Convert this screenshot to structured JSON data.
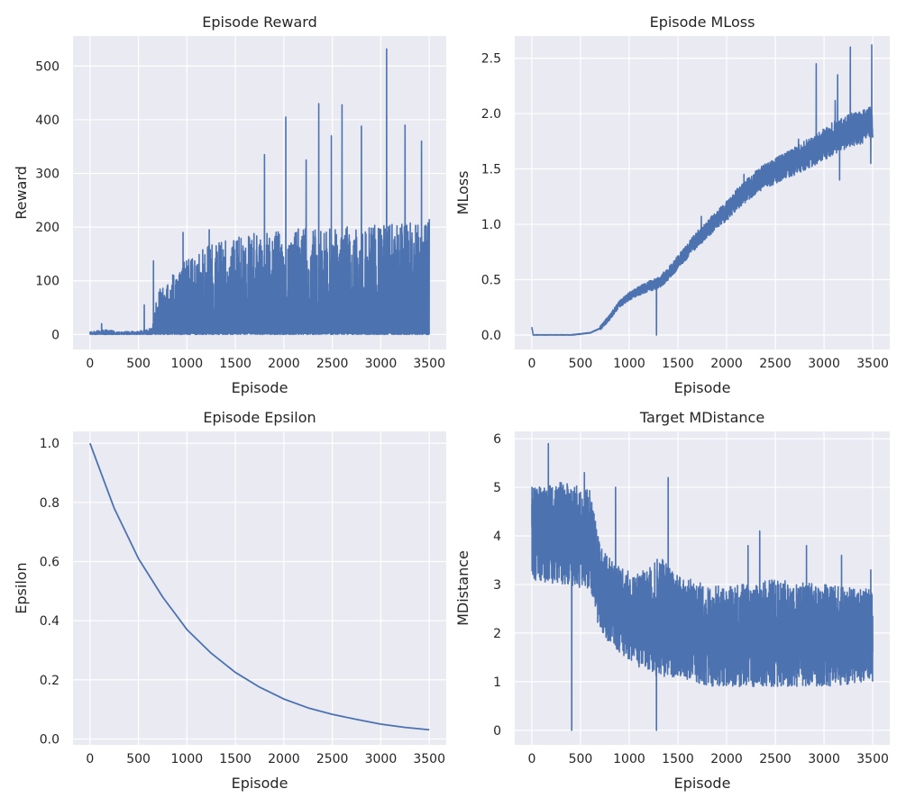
{
  "theme": {
    "plot_bg": "#eaeaf2",
    "grid": "#ffffff",
    "line": "#4c72b0",
    "text": "#262626"
  },
  "chart_data": [
    {
      "type": "line",
      "title": "Episode Reward",
      "xlabel": "Episode",
      "ylabel": "Reward",
      "xlim": [
        -175,
        3675
      ],
      "ylim": [
        -28,
        556
      ],
      "xticks": [
        0,
        500,
        1000,
        1500,
        2000,
        2500,
        3000,
        3500
      ],
      "yticks": [
        0,
        100,
        200,
        300,
        400,
        500
      ],
      "x_range": [
        0,
        3500
      ],
      "series": [
        {
          "name": "",
          "points_description": "noisy per-episode reward",
          "envelope_upper": [
            [
              0,
              8
            ],
            [
              150,
              15
            ],
            [
              300,
              10
            ],
            [
              500,
              10
            ],
            [
              640,
              20
            ],
            [
              700,
              80
            ],
            [
              800,
              100
            ],
            [
              1000,
              140
            ],
            [
              1200,
              165
            ],
            [
              1500,
              185
            ],
            [
              1800,
              190
            ],
            [
              2000,
              195
            ],
            [
              2500,
              200
            ],
            [
              3000,
              205
            ],
            [
              3500,
              210
            ]
          ],
          "peaks": [
            [
              120,
              20
            ],
            [
              560,
              55
            ],
            [
              655,
              137
            ],
            [
              960,
              190
            ],
            [
              1230,
              195
            ],
            [
              1800,
              335
            ],
            [
              2020,
              405
            ],
            [
              2230,
              325
            ],
            [
              2360,
              430
            ],
            [
              2490,
              370
            ],
            [
              2600,
              428
            ],
            [
              2800,
              388
            ],
            [
              3060,
              532
            ],
            [
              3250,
              390
            ],
            [
              3420,
              360
            ],
            [
              3500,
              215
            ]
          ],
          "floor": 0
        }
      ]
    },
    {
      "type": "line",
      "title": "Episode MLoss",
      "xlabel": "Episode",
      "ylabel": "MLoss",
      "xlim": [
        -175,
        3675
      ],
      "ylim": [
        -0.13,
        2.7
      ],
      "xticks": [
        0,
        500,
        1000,
        1500,
        2000,
        2500,
        3000,
        3500
      ],
      "yticks": [
        0.0,
        0.5,
        1.0,
        1.5,
        2.0,
        2.5
      ],
      "x_range": [
        0,
        3500
      ],
      "series": [
        {
          "name": "",
          "trend": [
            [
              0,
              0.07
            ],
            [
              15,
              0.0
            ],
            [
              400,
              0.0
            ],
            [
              600,
              0.02
            ],
            [
              700,
              0.06
            ],
            [
              800,
              0.16
            ],
            [
              900,
              0.28
            ],
            [
              1000,
              0.35
            ],
            [
              1100,
              0.4
            ],
            [
              1200,
              0.44
            ],
            [
              1300,
              0.47
            ],
            [
              1400,
              0.55
            ],
            [
              1500,
              0.66
            ],
            [
              1600,
              0.76
            ],
            [
              1700,
              0.87
            ],
            [
              1800,
              0.95
            ],
            [
              1900,
              1.05
            ],
            [
              2000,
              1.12
            ],
            [
              2100,
              1.22
            ],
            [
              2200,
              1.3
            ],
            [
              2300,
              1.38
            ],
            [
              2400,
              1.44
            ],
            [
              2500,
              1.48
            ],
            [
              2600,
              1.53
            ],
            [
              2700,
              1.57
            ],
            [
              2800,
              1.62
            ],
            [
              2900,
              1.67
            ],
            [
              3000,
              1.72
            ],
            [
              3100,
              1.78
            ],
            [
              3200,
              1.82
            ],
            [
              3300,
              1.86
            ],
            [
              3400,
              1.88
            ],
            [
              3500,
              1.92
            ]
          ],
          "spikes": [
            [
              1280,
              0.0
            ],
            [
              2920,
              2.45
            ],
            [
              3140,
              2.35
            ],
            [
              3270,
              2.6
            ],
            [
              3490,
              2.62
            ],
            [
              3160,
              1.4
            ],
            [
              3480,
              1.55
            ]
          ],
          "noise_amplitude": 0.15
        }
      ]
    },
    {
      "type": "line",
      "title": "Episode Epsilon",
      "xlabel": "Episode",
      "ylabel": "Epsilon",
      "xlim": [
        -175,
        3675
      ],
      "ylim": [
        -0.02,
        1.04
      ],
      "xticks": [
        0,
        500,
        1000,
        1500,
        2000,
        2500,
        3000,
        3500
      ],
      "yticks": [
        0.0,
        0.2,
        0.4,
        0.6,
        0.8,
        1.0
      ],
      "series": [
        {
          "name": "",
          "x": [
            0,
            250,
            500,
            750,
            1000,
            1250,
            1500,
            1750,
            2000,
            2250,
            2500,
            2750,
            3000,
            3250,
            3500
          ],
          "y": [
            1.0,
            0.78,
            0.61,
            0.48,
            0.37,
            0.29,
            0.225,
            0.175,
            0.135,
            0.105,
            0.083,
            0.066,
            0.05,
            0.039,
            0.031
          ]
        }
      ]
    },
    {
      "type": "line",
      "title": "Target MDistance",
      "xlabel": "Episode",
      "ylabel": "MDistance",
      "xlim": [
        -175,
        3675
      ],
      "ylim": [
        -0.3,
        6.15
      ],
      "xticks": [
        0,
        500,
        1000,
        1500,
        2000,
        2500,
        3000,
        3500
      ],
      "yticks": [
        0,
        1,
        2,
        3,
        4,
        5,
        6
      ],
      "x_range": [
        0,
        3500
      ],
      "series": [
        {
          "name": "",
          "band": [
            [
              0,
              3.1,
              5.0
            ],
            [
              300,
              3.0,
              5.1
            ],
            [
              600,
              2.9,
              5.0
            ],
            [
              700,
              2.0,
              3.8
            ],
            [
              900,
              1.6,
              3.4
            ],
            [
              1100,
              1.3,
              3.2
            ],
            [
              1300,
              1.1,
              3.6
            ],
            [
              1500,
              1.1,
              3.2
            ],
            [
              1800,
              0.9,
              3.0
            ],
            [
              2100,
              0.9,
              3.0
            ],
            [
              2500,
              0.9,
              3.1
            ],
            [
              3000,
              0.9,
              3.0
            ],
            [
              3500,
              1.0,
              2.9
            ]
          ],
          "spikes": [
            [
              170,
              5.9
            ],
            [
              410,
              0.0
            ],
            [
              540,
              5.3
            ],
            [
              860,
              5.0
            ],
            [
              1280,
              0.0
            ],
            [
              1400,
              5.2
            ],
            [
              2220,
              3.8
            ],
            [
              2340,
              4.1
            ],
            [
              2820,
              3.8
            ],
            [
              3180,
              3.6
            ],
            [
              3480,
              3.3
            ]
          ]
        }
      ]
    }
  ]
}
